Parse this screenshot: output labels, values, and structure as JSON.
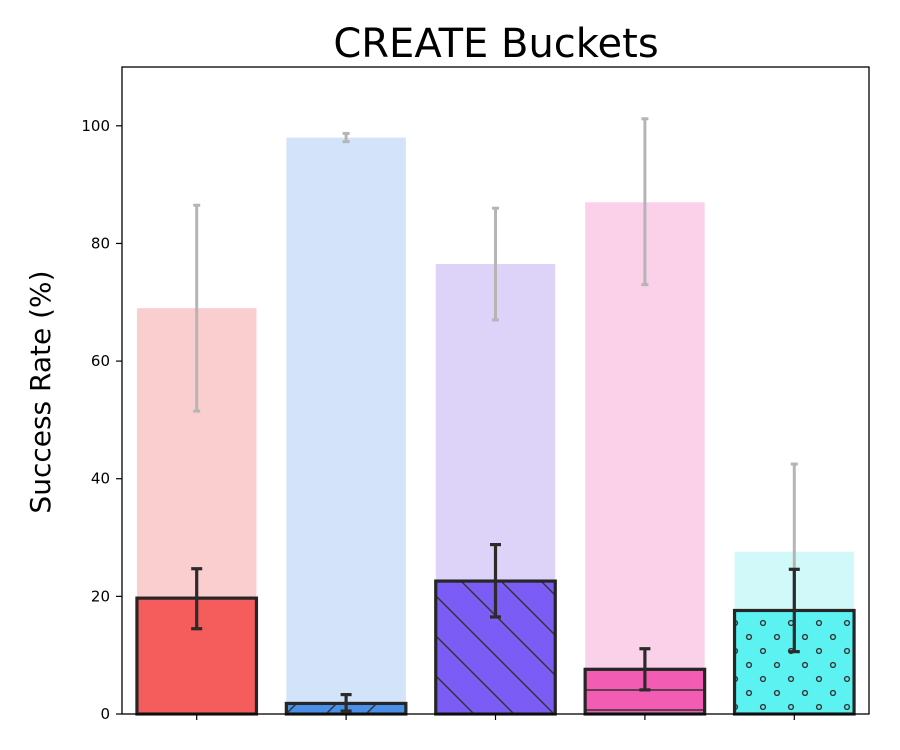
{
  "chart_data": {
    "type": "bar",
    "title": "CREATE Buckets",
    "xlabel": "",
    "ylabel": "Success Rate (%)",
    "ylim": [
      0,
      110
    ],
    "yticks": [
      "0",
      "20",
      "40",
      "60",
      "80",
      "100"
    ],
    "grid": false,
    "bars": [
      {
        "light_value": 69,
        "light_err": [
          51.5,
          86.5
        ],
        "dark_value": 19.7,
        "dark_err": [
          14.5,
          24.7
        ],
        "light_color": "#f8b4b4",
        "dark_color": "#f55c5c",
        "pattern": "none"
      },
      {
        "light_value": 98,
        "light_err": [
          97.3,
          98.7
        ],
        "dark_value": 1.8,
        "dark_err": [
          0.5,
          3.3
        ],
        "light_color": "#bcd6f7",
        "dark_color": "#4a8fe8",
        "pattern": "forward-diagonal"
      },
      {
        "light_value": 76.5,
        "light_err": [
          67,
          86
        ],
        "dark_value": 22.6,
        "dark_err": [
          16.5,
          28.8
        ],
        "light_color": "#cbbcf5",
        "dark_color": "#7b5cf5",
        "pattern": "backward-diagonal"
      },
      {
        "light_value": 87,
        "light_err": [
          73,
          101.2
        ],
        "dark_value": 7.6,
        "dark_err": [
          4.1,
          11.1
        ],
        "light_color": "#f8b9dd",
        "dark_color": "#f25cb2",
        "pattern": "horizontal"
      },
      {
        "light_value": 27.6,
        "light_err": [
          12.6,
          42.5
        ],
        "dark_value": 17.6,
        "dark_err": [
          10.6,
          24.6
        ],
        "light_color": "#b9f6f8",
        "dark_color": "#5cf2f2",
        "pattern": "dots"
      }
    ]
  }
}
